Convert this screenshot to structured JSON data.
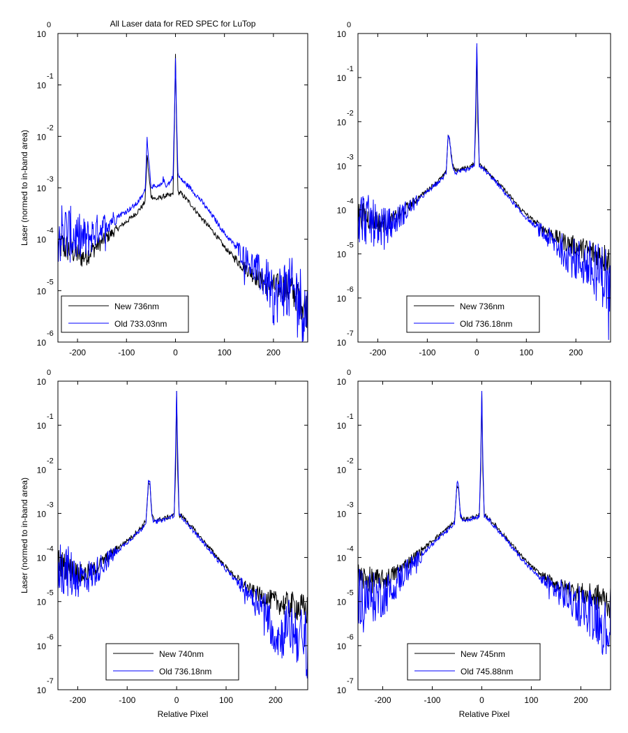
{
  "figure": {
    "title": "All Laser data for RED SPEC for LuTop"
  },
  "colors": {
    "new_series": "#000000",
    "old_series": "#0000ff",
    "axes": "#000000",
    "background": "#ffffff"
  },
  "chart_data": [
    {
      "type": "line",
      "title": "All Laser data for RED SPEC for LuTop",
      "xlabel": "",
      "ylabel": "Laser (normed to in-band area)",
      "xlim": [
        -240,
        270
      ],
      "ylim": [
        1e-06,
        1
      ],
      "yscale": "log",
      "xticks": [
        -200,
        -100,
        0,
        100,
        200
      ],
      "yticks": [
        {
          "base": "10",
          "exp": "0"
        },
        {
          "base": "10",
          "exp": "-1"
        },
        {
          "base": "10",
          "exp": "-2"
        },
        {
          "base": "10",
          "exp": "-3"
        },
        {
          "base": "10",
          "exp": "-4"
        },
        {
          "base": "10",
          "exp": "-5"
        },
        {
          "base": "10",
          "exp": "-6"
        }
      ],
      "grid": false,
      "legend_position": "bottom-left",
      "series": [
        {
          "name": "New 736nm",
          "color": "#000000",
          "x": [
            -240,
            -210,
            -190,
            -180,
            -160,
            -130,
            -100,
            -80,
            -67,
            -62,
            -58,
            -55,
            -50,
            -40,
            -30,
            -20,
            -10,
            -5,
            -2,
            0,
            2,
            5,
            10,
            30,
            50,
            80,
            100,
            130,
            160,
            190,
            220,
            250,
            270
          ],
          "y": [
            8e-05,
            6e-05,
            4.5e-05,
            5e-05,
            7.5e-05,
            0.00013,
            0.00022,
            0.00032,
            0.00045,
            0.00055,
            0.0045,
            0.002,
            0.0007,
            0.0006,
            0.00065,
            0.0007,
            0.0007,
            0.0008,
            0.02,
            0.4,
            0.02,
            0.0008,
            0.0008,
            0.0005,
            0.00028,
            0.00013,
            7e-05,
            3.5e-05,
            2e-05,
            1.2e-05,
            1.2e-05,
            8e-06,
            4e-06
          ]
        },
        {
          "name": "Old 733.03nm",
          "color": "#0000ff",
          "x": [
            -240,
            -210,
            -190,
            -180,
            -160,
            -130,
            -100,
            -80,
            -67,
            -62,
            -58,
            -55,
            -50,
            -40,
            -30,
            -25,
            -20,
            -10,
            -5,
            -2,
            0,
            2,
            5,
            10,
            30,
            50,
            80,
            100,
            130,
            160,
            190,
            200,
            220,
            250,
            270
          ],
          "y": [
            0.00014,
            0.00012,
            0.0001,
            0.0001,
            0.00015,
            0.00024,
            0.00035,
            0.00048,
            0.0007,
            0.0009,
            0.0095,
            0.004,
            0.0011,
            0.001,
            0.0011,
            0.0015,
            0.0011,
            0.0013,
            0.0018,
            0.03,
            0.33,
            0.03,
            0.0018,
            0.0015,
            0.001,
            0.0006,
            0.00025,
            0.00013,
            6e-05,
            2.8e-05,
            1.4e-05,
            6e-06,
            1.2e-05,
            8e-06,
            3e-06
          ]
        }
      ]
    },
    {
      "type": "line",
      "title": "",
      "xlabel": "",
      "ylabel": "",
      "xlim": [
        -240,
        270
      ],
      "ylim": [
        1e-07,
        1
      ],
      "yscale": "log",
      "xticks": [
        -200,
        -100,
        0,
        100,
        200
      ],
      "yticks": [
        {
          "base": "10",
          "exp": "0"
        },
        {
          "base": "10",
          "exp": "-1"
        },
        {
          "base": "10",
          "exp": "-2"
        },
        {
          "base": "10",
          "exp": "-3"
        },
        {
          "base": "10",
          "exp": "-4"
        },
        {
          "base": "10",
          "exp": "-5"
        },
        {
          "base": "10",
          "exp": "-6"
        },
        {
          "base": "10",
          "exp": "-7"
        }
      ],
      "grid": false,
      "legend_position": "bottom-right",
      "series": [
        {
          "name": "New 736nm",
          "color": "#000000",
          "x": [
            -240,
            -210,
            -190,
            -170,
            -150,
            -120,
            -90,
            -70,
            -62,
            -58,
            -55,
            -50,
            -45,
            -40,
            -30,
            -20,
            -10,
            -5,
            -2,
            0,
            2,
            5,
            10,
            30,
            60,
            90,
            120,
            150,
            180,
            210,
            240,
            270
          ],
          "y": [
            8e-05,
            6e-05,
            5e-05,
            6e-05,
            9e-05,
            0.00018,
            0.00035,
            0.00055,
            0.0007,
            0.005,
            0.004,
            0.0012,
            0.0008,
            0.0008,
            0.00085,
            0.0009,
            0.001,
            0.0011,
            0.01,
            0.5,
            0.01,
            0.0011,
            0.001,
            0.0006,
            0.00025,
            0.0001,
            5e-05,
            2.8e-05,
            1.8e-05,
            1.3e-05,
            1e-05,
            7e-06
          ]
        },
        {
          "name": "Old 736.18nm",
          "color": "#0000ff",
          "x": [
            -240,
            -210,
            -190,
            -170,
            -150,
            -120,
            -90,
            -70,
            -62,
            -58,
            -55,
            -50,
            -45,
            -40,
            -30,
            -20,
            -10,
            -5,
            -2,
            0,
            2,
            5,
            10,
            30,
            60,
            90,
            120,
            150,
            180,
            200,
            220,
            240,
            260,
            270
          ],
          "y": [
            8e-05,
            5e-05,
            4e-05,
            5e-05,
            8e-05,
            0.00016,
            0.00032,
            0.0005,
            0.0007,
            0.0052,
            0.0042,
            0.0011,
            0.0007,
            0.0007,
            0.00075,
            0.0008,
            0.0009,
            0.001,
            0.03,
            0.6,
            0.03,
            0.001,
            0.0009,
            0.00055,
            0.00022,
            8.5e-05,
            4e-05,
            2e-05,
            1.1e-05,
            7e-06,
            6e-06,
            4e-06,
            3e-06,
            1e-06
          ]
        }
      ]
    },
    {
      "type": "line",
      "title": "",
      "xlabel": "Relative Pixel",
      "ylabel": "Laser (normed to in-band area)",
      "xlim": [
        -240,
        265
      ],
      "ylim": [
        1e-07,
        1
      ],
      "yscale": "log",
      "xticks": [
        -200,
        -100,
        0,
        100,
        200
      ],
      "yticks": [
        {
          "base": "10",
          "exp": "0"
        },
        {
          "base": "10",
          "exp": "-1"
        },
        {
          "base": "10",
          "exp": "-2"
        },
        {
          "base": "10",
          "exp": "-3"
        },
        {
          "base": "10",
          "exp": "-4"
        },
        {
          "base": "10",
          "exp": "-5"
        },
        {
          "base": "10",
          "exp": "-6"
        },
        {
          "base": "10",
          "exp": "-7"
        }
      ],
      "grid": false,
      "legend_position": "bottom-center",
      "series": [
        {
          "name": "New 740nm",
          "color": "#000000",
          "x": [
            -240,
            -210,
            -190,
            -170,
            -150,
            -120,
            -90,
            -70,
            -62,
            -57,
            -54,
            -50,
            -45,
            -40,
            -30,
            -20,
            -10,
            -5,
            -2,
            0,
            2,
            5,
            10,
            30,
            60,
            90,
            120,
            150,
            180,
            210,
            240,
            265
          ],
          "y": [
            8e-05,
            5e-05,
            4e-05,
            5e-05,
            8e-05,
            0.00016,
            0.0003,
            0.0005,
            0.0007,
            0.0045,
            0.0045,
            0.0009,
            0.0007,
            0.0007,
            0.00075,
            0.0008,
            0.0009,
            0.0009,
            0.01,
            0.6,
            0.01,
            0.0009,
            0.0009,
            0.0005,
            0.0002,
            8e-05,
            3.5e-05,
            1.8e-05,
            1.2e-05,
            9e-06,
            8e-06,
            6e-06
          ]
        },
        {
          "name": "Old 736.18nm",
          "color": "#0000ff",
          "x": [
            -240,
            -210,
            -190,
            -170,
            -150,
            -120,
            -90,
            -70,
            -62,
            -57,
            -54,
            -50,
            -45,
            -40,
            -30,
            -20,
            -10,
            -5,
            -2,
            0,
            2,
            5,
            10,
            30,
            60,
            90,
            120,
            150,
            180,
            195,
            210,
            225,
            240,
            265
          ],
          "y": [
            7e-05,
            4e-05,
            3.5e-05,
            4e-05,
            7e-05,
            0.00014,
            0.00028,
            0.00045,
            0.00065,
            0.0052,
            0.0048,
            0.0008,
            0.00065,
            0.00065,
            0.0007,
            0.00075,
            0.00085,
            0.00088,
            0.03,
            0.6,
            0.03,
            0.00088,
            0.00085,
            0.00045,
            0.00018,
            7e-05,
            3e-05,
            1.5e-05,
            7e-06,
            2e-06,
            1.5e-06,
            3e-06,
            2e-06,
            1e-06
          ]
        }
      ]
    },
    {
      "type": "line",
      "title": "",
      "xlabel": "Relative Pixel",
      "ylabel": "",
      "xlim": [
        -250,
        260
      ],
      "ylim": [
        1e-07,
        1
      ],
      "yscale": "log",
      "xticks": [
        -200,
        -100,
        0,
        100,
        200
      ],
      "yticks": [
        {
          "base": "10",
          "exp": "0"
        },
        {
          "base": "10",
          "exp": "-1"
        },
        {
          "base": "10",
          "exp": "-2"
        },
        {
          "base": "10",
          "exp": "-3"
        },
        {
          "base": "10",
          "exp": "-4"
        },
        {
          "base": "10",
          "exp": "-5"
        },
        {
          "base": "10",
          "exp": "-6"
        },
        {
          "base": "10",
          "exp": "-7"
        }
      ],
      "grid": false,
      "legend_position": "bottom-center",
      "series": [
        {
          "name": "New 745nm",
          "color": "#000000",
          "x": [
            -250,
            -220,
            -200,
            -180,
            -160,
            -130,
            -100,
            -70,
            -55,
            -50,
            -47,
            -43,
            -38,
            -30,
            -20,
            -10,
            -5,
            -2,
            0,
            2,
            5,
            10,
            30,
            60,
            90,
            120,
            150,
            180,
            210,
            240,
            260
          ],
          "y": [
            3.5e-05,
            3e-05,
            3e-05,
            4e-05,
            6e-05,
            0.00012,
            0.00024,
            0.00045,
            0.00065,
            0.0045,
            0.0035,
            0.0009,
            0.00075,
            0.00075,
            0.0008,
            0.00085,
            0.0009,
            0.01,
            0.6,
            0.01,
            0.0009,
            0.00085,
            0.0005,
            0.0002,
            8e-05,
            4e-05,
            2.5e-05,
            1.8e-05,
            1.4e-05,
            1.2e-05,
            9e-06
          ]
        },
        {
          "name": "Old 745.88nm",
          "color": "#0000ff",
          "x": [
            -250,
            -220,
            -200,
            -180,
            -160,
            -130,
            -100,
            -70,
            -55,
            -50,
            -47,
            -43,
            -38,
            -30,
            -20,
            -10,
            -5,
            -2,
            0,
            2,
            5,
            10,
            30,
            60,
            90,
            120,
            150,
            180,
            210,
            240,
            250,
            260
          ],
          "y": [
            1.5e-05,
            1.2e-05,
            1.4e-05,
            2e-05,
            4e-05,
            9e-05,
            0.0002,
            0.0004,
            0.0006,
            0.0052,
            0.004,
            0.0009,
            0.0007,
            0.00072,
            0.00078,
            0.00082,
            0.00088,
            0.02,
            0.6,
            0.02,
            0.00088,
            0.00082,
            0.00045,
            0.00018,
            7e-05,
            3.2e-05,
            1.8e-05,
            1.1e-05,
            7e-06,
            4e-06,
            2e-06,
            4e-06
          ]
        }
      ]
    }
  ]
}
